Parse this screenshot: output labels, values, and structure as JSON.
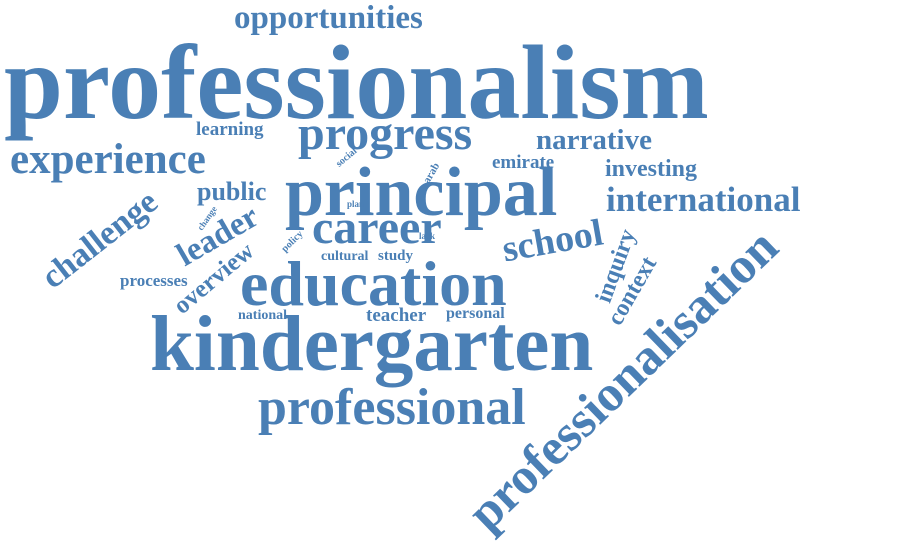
{
  "word_color": "#4a7fb5",
  "background": "#ffffff",
  "words": {
    "professionalism": "professionalism",
    "kindergarten": "kindergarten",
    "education": "education",
    "principal": "principal",
    "professionalisation": "professionalisation",
    "professional": "professional",
    "progress": "progress",
    "experience": "experience",
    "career": "career",
    "school": "school",
    "opportunities": "opportunities",
    "challenge": "challenge",
    "international": "international",
    "narrative": "narrative",
    "leader": "leader",
    "public": "public",
    "investing": "investing",
    "learning": "learning",
    "emirate": "emirate",
    "inquiry": "inquiry",
    "context": "context",
    "overview": "overview",
    "processes": "processes",
    "teacher": "teacher",
    "personal": "personal",
    "national": "national",
    "cultural": "cultural",
    "study": "study",
    "social": "social",
    "arab": "arab",
    "plan": "plan",
    "change": "change",
    "policy": "policy",
    "lack": "lack"
  }
}
